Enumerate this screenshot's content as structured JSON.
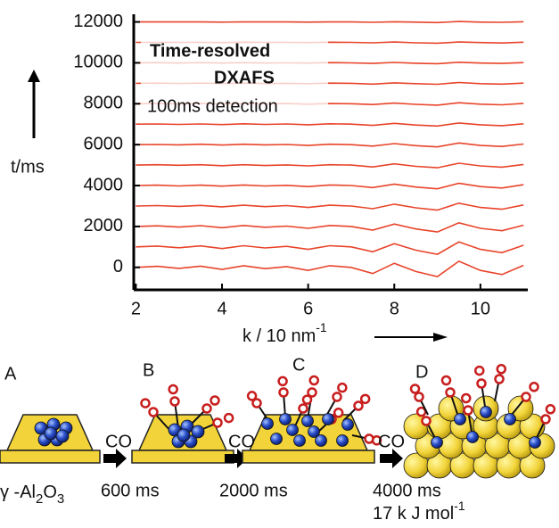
{
  "chart_data": {
    "type": "waterfall",
    "annotations": [
      "Time-resolved",
      "DXAFS",
      "100ms detection"
    ],
    "ylabel": "t/ms",
    "xlabel": "k / 10 nm",
    "xlabel_sup": "-1",
    "x": [
      2,
      2.5,
      3,
      3.5,
      4,
      4.5,
      5,
      5.5,
      6,
      6.5,
      7,
      7.5,
      8,
      8.5,
      9,
      9.5,
      10,
      10.5,
      11
    ],
    "xlim": [
      1.95,
      11.1
    ],
    "xticks": [
      2,
      4,
      6,
      8,
      10
    ],
    "ylim": [
      -1100,
      12200
    ],
    "yticks": [
      0,
      2000,
      4000,
      6000,
      8000,
      10000,
      12000
    ],
    "grid": false,
    "color": "#e8442a",
    "series": [
      {
        "values": [
          0,
          50,
          -50,
          60,
          -100,
          80,
          -60,
          40,
          -150,
          80,
          0,
          -300,
          200,
          -200,
          -450,
          300,
          -150,
          -350,
          100
        ]
      },
      {
        "values": [
          1000,
          1040,
          960,
          1050,
          920,
          1060,
          950,
          1030,
          880,
          1060,
          1000,
          760,
          1160,
          840,
          640,
          1240,
          880,
          720,
          1080
        ]
      },
      {
        "values": [
          2000,
          2030,
          1970,
          2040,
          1940,
          2050,
          1960,
          2020,
          1910,
          2050,
          2000,
          1820,
          2120,
          1880,
          1730,
          2180,
          1910,
          1790,
          2060
        ]
      },
      {
        "values": [
          3000,
          3020,
          2980,
          3030,
          2960,
          3040,
          2970,
          3020,
          2930,
          3040,
          3000,
          2870,
          3090,
          2910,
          2800,
          3140,
          2930,
          2840,
          3050
        ]
      },
      {
        "values": [
          4000,
          4020,
          3980,
          4020,
          3970,
          4030,
          3980,
          4010,
          3950,
          4030,
          4000,
          3900,
          4070,
          3930,
          3840,
          4110,
          3950,
          3880,
          4040
        ]
      },
      {
        "values": [
          5000,
          5020,
          4990,
          5020,
          4970,
          5020,
          4980,
          5010,
          4960,
          5020,
          5000,
          4910,
          5060,
          4940,
          4870,
          5090,
          4960,
          4900,
          5030
        ]
      },
      {
        "values": [
          6000,
          6010,
          5990,
          6020,
          5980,
          6020,
          5990,
          6010,
          5960,
          6020,
          6000,
          5930,
          6050,
          5950,
          5890,
          6080,
          5960,
          5910,
          6030
        ]
      },
      {
        "values": [
          7000,
          7010,
          6990,
          7010,
          6980,
          7020,
          6990,
          7010,
          6970,
          7020,
          7000,
          6940,
          7040,
          6960,
          6910,
          7060,
          6970,
          6930,
          7020
        ]
      },
      {
        "values": [
          8000,
          8010,
          7990,
          8010,
          7990,
          8010,
          7990,
          8010,
          7980,
          8010,
          8000,
          7960,
          8030,
          7970,
          7930,
          8050,
          7980,
          7950,
          8020
        ]
      },
      {
        "values": [
          9000,
          9010,
          8990,
          9010,
          8990,
          9010,
          8990,
          9000,
          8980,
          9010,
          9000,
          8960,
          9020,
          8980,
          8950,
          9040,
          8980,
          8960,
          9010
        ]
      },
      {
        "values": [
          10000,
          10010,
          9990,
          10010,
          9990,
          10010,
          9990,
          10000,
          9990,
          10010,
          10000,
          9970,
          10020,
          9980,
          9960,
          10030,
          9990,
          9970,
          10010
        ]
      },
      {
        "values": [
          11000,
          11000,
          11000,
          11000,
          10990,
          11010,
          11000,
          11000,
          10990,
          11010,
          11000,
          10980,
          11020,
          10980,
          10960,
          11020,
          10990,
          10970,
          11010
        ]
      },
      {
        "values": [
          12000,
          12000,
          12000,
          12000,
          11990,
          12000,
          12000,
          12000,
          11990,
          12000,
          12000,
          11980,
          12010,
          11990,
          11970,
          12020,
          11990,
          11980,
          12010
        ]
      }
    ],
    "scheme": {
      "panels": [
        "A",
        "B",
        "C",
        "D"
      ],
      "reagent": "CO",
      "support": [
        "γ -Al",
        "2",
        "O",
        "3"
      ],
      "times": [
        "600 ms",
        "2000 ms",
        "4000 ms"
      ],
      "energy": "17 k J mol",
      "energy_sup": "-1"
    }
  }
}
